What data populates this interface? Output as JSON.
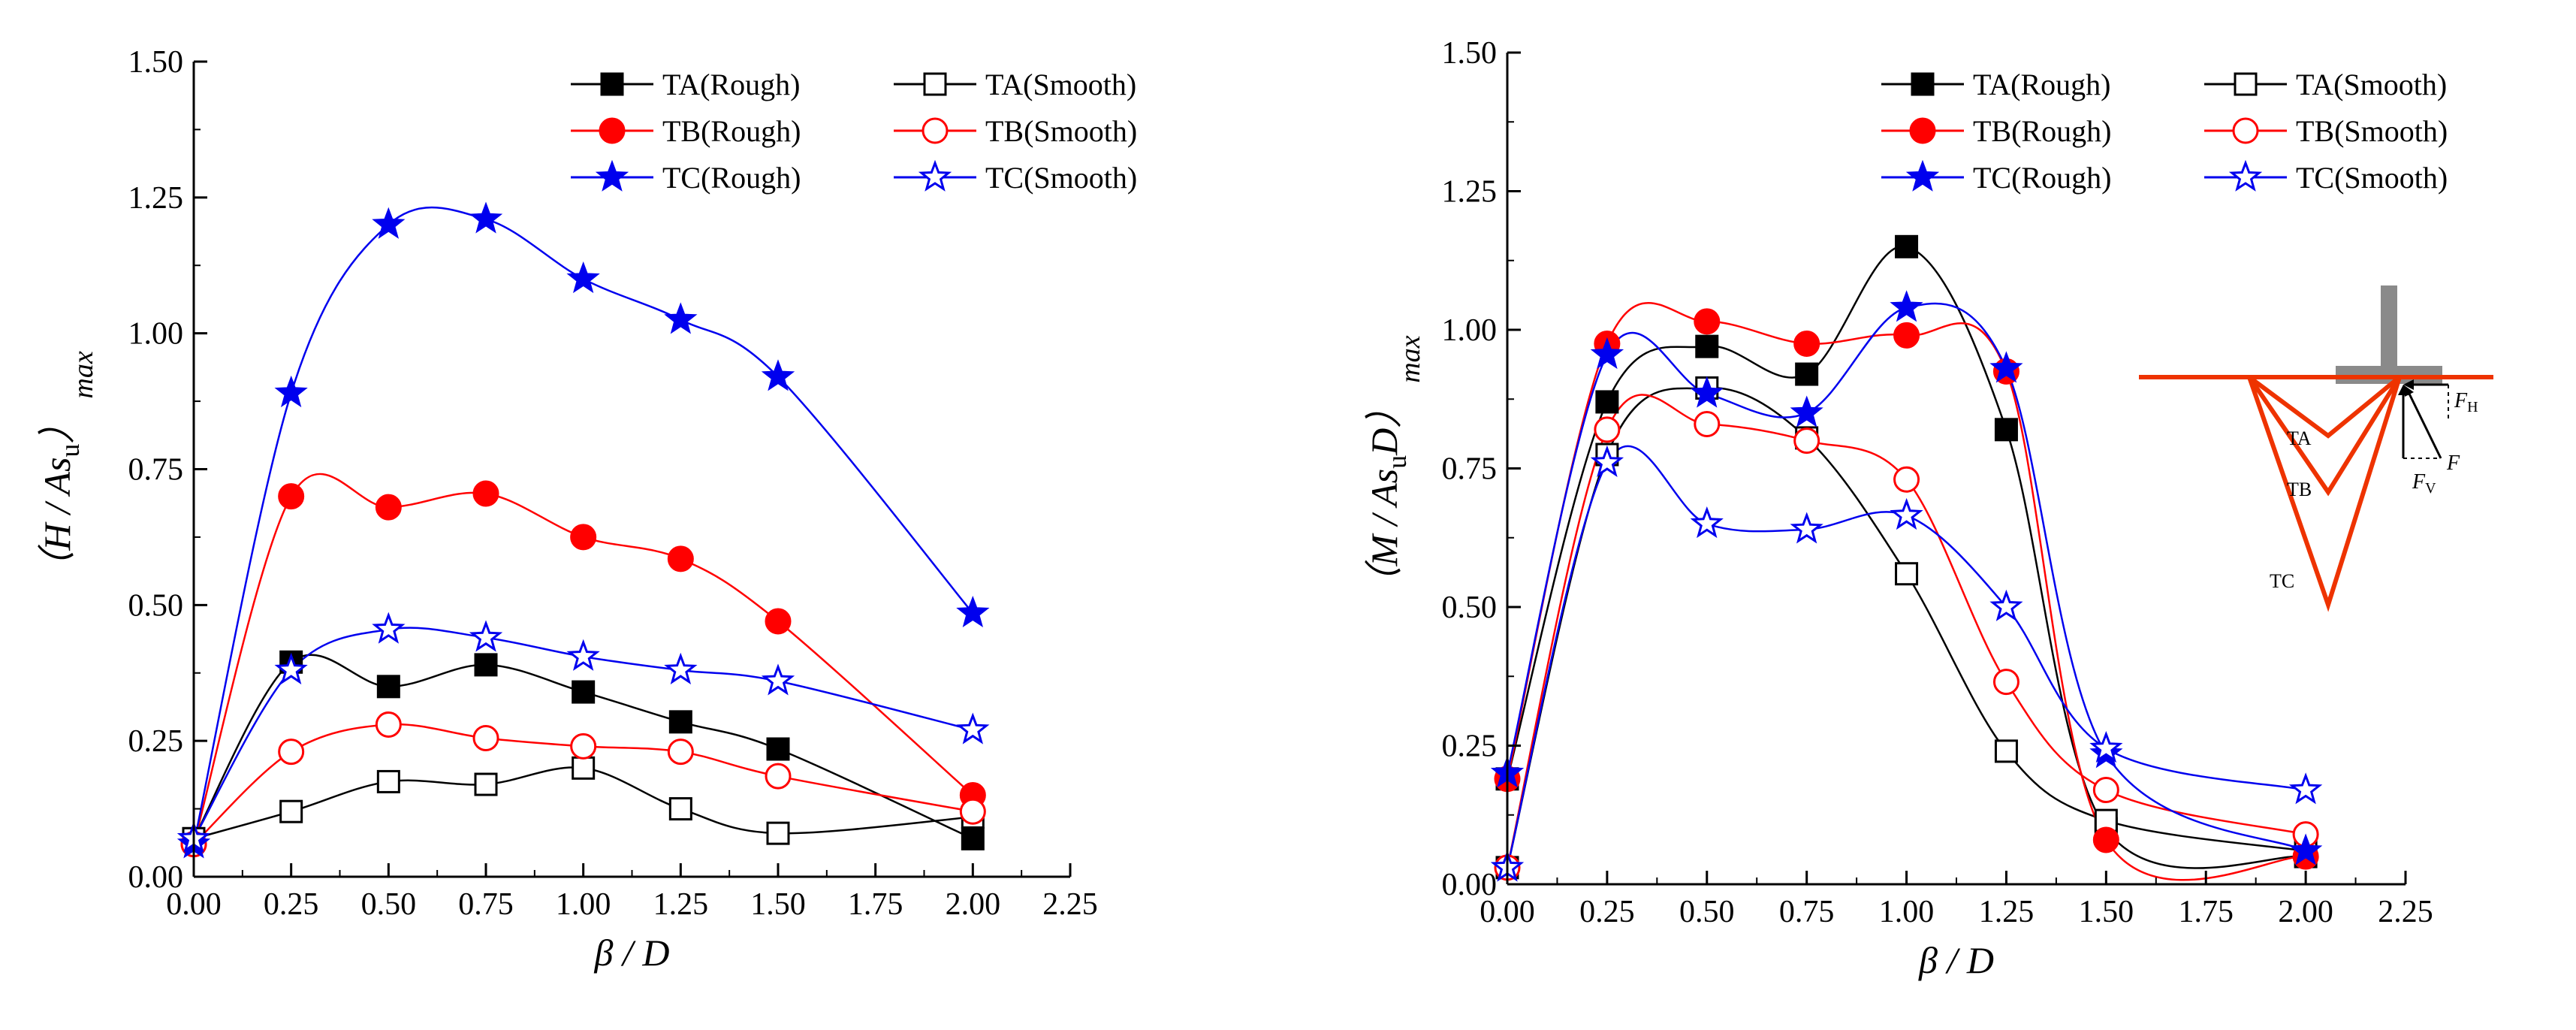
{
  "colors": {
    "black": "#000000",
    "red": "#ff0000",
    "blue": "#0000ee",
    "wedge": "#ee3300",
    "footing": "#8a8a8a"
  },
  "chart_data": [
    {
      "type": "scatter",
      "xlabel": "β / D",
      "ylabel_parts": [
        "（",
        "H",
        " / ",
        "As",
        "u",
        "）",
        "max"
      ],
      "xlim": [
        0,
        2.25
      ],
      "ylim": [
        0,
        1.5
      ],
      "xticks": [
        "0.00",
        "0.25",
        "0.50",
        "0.75",
        "1.00",
        "1.25",
        "1.50",
        "1.75",
        "2.00",
        "2.25"
      ],
      "yticks": [
        "0.00",
        "0.25",
        "0.50",
        "0.75",
        "1.00",
        "1.25",
        "1.50"
      ],
      "legend_position": "top-right",
      "series": [
        {
          "name": "TA(Rough)",
          "color": "#000000",
          "marker": "square",
          "filled": true,
          "x": [
            0,
            0.25,
            0.5,
            0.75,
            1.0,
            1.25,
            1.5,
            2.0
          ],
          "y": [
            0.07,
            0.395,
            0.35,
            0.39,
            0.34,
            0.285,
            0.235,
            0.07
          ]
        },
        {
          "name": "TA(Smooth)",
          "color": "#000000",
          "marker": "square",
          "filled": false,
          "x": [
            0,
            0.25,
            0.5,
            0.75,
            1.0,
            1.25,
            1.5,
            2.0
          ],
          "y": [
            0.07,
            0.12,
            0.175,
            0.17,
            0.2,
            0.125,
            0.08,
            0.11
          ]
        },
        {
          "name": "TB(Rough)",
          "color": "#ff0000",
          "marker": "circle",
          "filled": true,
          "x": [
            0,
            0.25,
            0.5,
            0.75,
            1.0,
            1.25,
            1.5,
            2.0
          ],
          "y": [
            0.06,
            0.7,
            0.68,
            0.705,
            0.625,
            0.585,
            0.47,
            0.15
          ]
        },
        {
          "name": "TB(Smooth)",
          "color": "#ff0000",
          "marker": "circle",
          "filled": false,
          "x": [
            0,
            0.25,
            0.5,
            0.75,
            1.0,
            1.25,
            1.5,
            2.0
          ],
          "y": [
            0.06,
            0.23,
            0.28,
            0.255,
            0.24,
            0.23,
            0.185,
            0.12
          ]
        },
        {
          "name": "TC(Rough)",
          "color": "#0000ee",
          "marker": "star",
          "filled": true,
          "x": [
            0,
            0.25,
            0.5,
            0.75,
            1.0,
            1.25,
            1.5,
            2.0
          ],
          "y": [
            0.06,
            0.89,
            1.2,
            1.21,
            1.1,
            1.025,
            0.92,
            0.485
          ]
        },
        {
          "name": "TC(Smooth)",
          "color": "#0000ee",
          "marker": "star",
          "filled": false,
          "x": [
            0,
            0.25,
            0.5,
            0.75,
            1.0,
            1.25,
            1.5,
            2.0
          ],
          "y": [
            0.07,
            0.38,
            0.455,
            0.44,
            0.405,
            0.38,
            0.36,
            0.27
          ]
        }
      ]
    },
    {
      "type": "scatter",
      "xlabel": "β / D",
      "ylabel_parts": [
        "（",
        "M",
        " / ",
        "As",
        "u",
        "D",
        "）",
        "max"
      ],
      "xlim": [
        0,
        2.25
      ],
      "ylim": [
        0,
        1.5
      ],
      "xticks": [
        "0.00",
        "0.25",
        "0.50",
        "0.75",
        "1.00",
        "1.25",
        "1.50",
        "1.75",
        "2.00",
        "2.25"
      ],
      "yticks": [
        "0.00",
        "0.25",
        "0.50",
        "0.75",
        "1.00",
        "1.25",
        "1.50"
      ],
      "legend_position": "top-right",
      "series": [
        {
          "name": "TA(Rough)",
          "color": "#000000",
          "marker": "square",
          "filled": true,
          "x": [
            0,
            0.25,
            0.5,
            0.75,
            1.0,
            1.25,
            1.5,
            2.0
          ],
          "y": [
            0.19,
            0.87,
            0.97,
            0.92,
            1.15,
            0.82,
            0.1,
            0.05
          ]
        },
        {
          "name": "TA(Smooth)",
          "color": "#000000",
          "marker": "square",
          "filled": false,
          "x": [
            0,
            0.25,
            0.5,
            0.75,
            1.0,
            1.25,
            1.5,
            2.0
          ],
          "y": [
            0.03,
            0.775,
            0.895,
            0.805,
            0.56,
            0.24,
            0.115,
            0.06
          ]
        },
        {
          "name": "TB(Rough)",
          "color": "#ff0000",
          "marker": "circle",
          "filled": true,
          "x": [
            0,
            0.25,
            0.5,
            0.75,
            1.0,
            1.25,
            1.5,
            2.0
          ],
          "y": [
            0.19,
            0.975,
            1.015,
            0.975,
            0.99,
            0.925,
            0.08,
            0.05
          ]
        },
        {
          "name": "TB(Smooth)",
          "color": "#ff0000",
          "marker": "circle",
          "filled": false,
          "x": [
            0,
            0.25,
            0.5,
            0.75,
            1.0,
            1.25,
            1.5,
            2.0
          ],
          "y": [
            0.03,
            0.82,
            0.83,
            0.8,
            0.73,
            0.365,
            0.17,
            0.09
          ]
        },
        {
          "name": "TC(Rough)",
          "color": "#0000ee",
          "marker": "star",
          "filled": true,
          "x": [
            0,
            0.25,
            0.5,
            0.75,
            1.0,
            1.25,
            1.5,
            2.0
          ],
          "y": [
            0.2,
            0.955,
            0.885,
            0.85,
            1.04,
            0.93,
            0.235,
            0.06
          ]
        },
        {
          "name": "TC(Smooth)",
          "color": "#0000ee",
          "marker": "star",
          "filled": false,
          "x": [
            0,
            0.25,
            0.5,
            0.75,
            1.0,
            1.25,
            1.5,
            2.0
          ],
          "y": [
            0.03,
            0.76,
            0.65,
            0.64,
            0.665,
            0.5,
            0.245,
            0.17
          ]
        }
      ],
      "inset": {
        "wedge_labels": [
          "TA",
          "TB",
          "TC"
        ],
        "force_labels": {
          "FH_main": "F",
          "FH_sub": "H",
          "FV_main": "F",
          "FV_sub": "V",
          "F": "F"
        }
      }
    }
  ]
}
